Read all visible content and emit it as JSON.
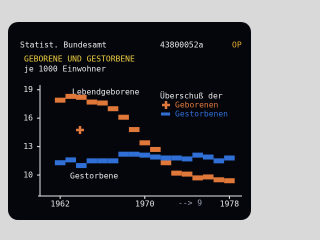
{
  "header": {
    "source": "Statist. Bundesamt",
    "code": "43800052a",
    "page": "OP"
  },
  "chart_data": {
    "type": "line",
    "title": "GEBORENE UND GESTORBENE",
    "subtitle": "je 1000 Einwohner",
    "x": [
      1962,
      1963,
      1964,
      1965,
      1966,
      1967,
      1968,
      1969,
      1970,
      1971,
      1972,
      1973,
      1974,
      1975,
      1976,
      1977,
      1978
    ],
    "series": [
      {
        "name": "Geborenen",
        "color": "#e0783a",
        "values": [
          17.9,
          18.3,
          18.2,
          17.7,
          17.6,
          17.0,
          16.1,
          14.8,
          13.4,
          12.7,
          11.3,
          10.2,
          10.1,
          9.7,
          9.8,
          9.5,
          9.4
        ]
      },
      {
        "name": "Gestorbenen",
        "color": "#2f6fd6",
        "values": [
          11.3,
          11.6,
          11.0,
          11.5,
          11.5,
          11.5,
          12.2,
          12.2,
          12.1,
          11.9,
          11.8,
          11.8,
          11.7,
          12.1,
          11.9,
          11.5,
          11.8
        ]
      }
    ],
    "legend_title": "Überschuß der",
    "annotations": [
      "Lebendgeborene",
      "Gestorbene",
      "--> 9"
    ],
    "xlim": [
      1960,
      1979
    ],
    "xticks": [
      1962,
      1970,
      1978
    ],
    "ylim": [
      8,
      19.5
    ],
    "yticks": [
      10,
      13,
      16,
      19
    ]
  }
}
